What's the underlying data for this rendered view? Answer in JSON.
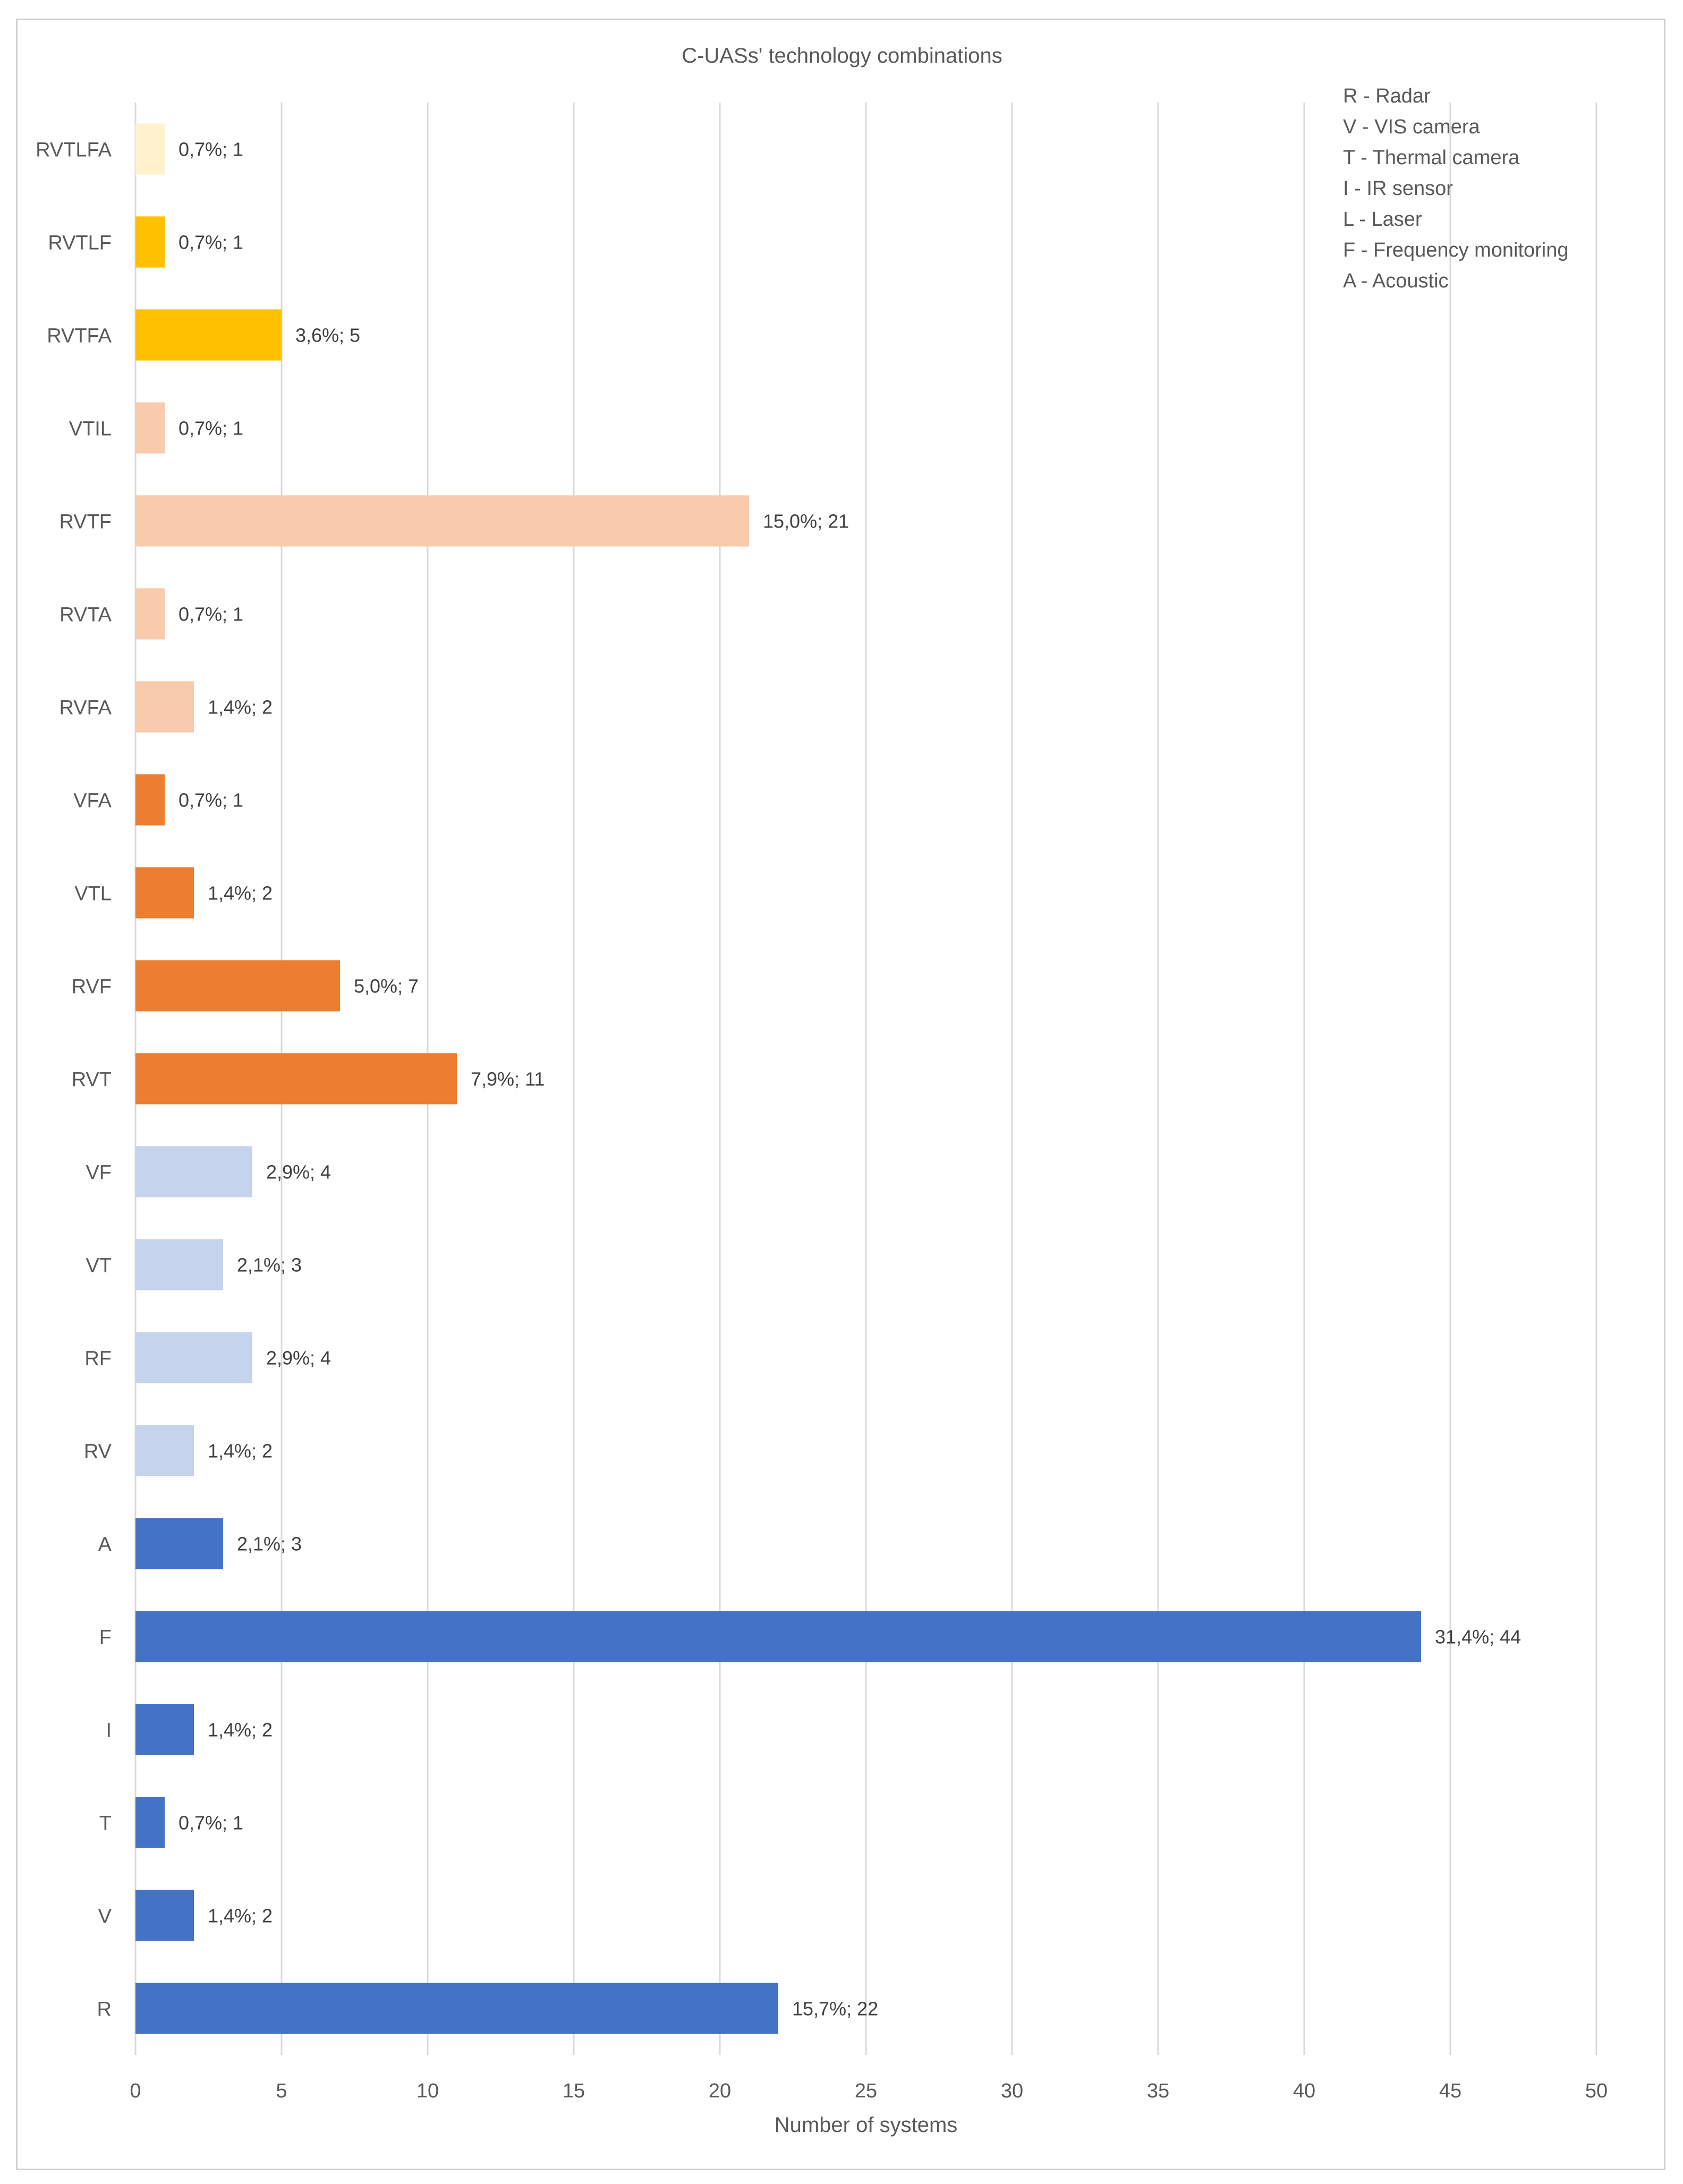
{
  "chart_data": {
    "type": "bar",
    "orientation": "horizontal",
    "title": "C-UASs' technology combinations",
    "xlabel": "Number of systems",
    "ylabel": "",
    "xlim": [
      0,
      50
    ],
    "xticks": [
      0,
      5,
      10,
      15,
      20,
      25,
      30,
      35,
      40,
      45,
      50
    ],
    "grid": "vertical",
    "legend_position": "top-right",
    "legend": [
      "R - Radar",
      "V - VIS camera",
      "T - Thermal camera",
      "I - IR sensor",
      "L - Laser",
      "F - Frequency monitoring",
      "A - Acoustic"
    ],
    "bars": [
      {
        "category": "RVTLFA",
        "value": 1,
        "label": "0,7%; 1",
        "color": "#FFF2CC"
      },
      {
        "category": "RVTLF",
        "value": 1,
        "label": "0,7%; 1",
        "color": "#FFC000"
      },
      {
        "category": "RVTFA",
        "value": 5,
        "label": "3,6%; 5",
        "color": "#FFC000"
      },
      {
        "category": "VTIL",
        "value": 1,
        "label": "0,7%; 1",
        "color": "#F8CBAD"
      },
      {
        "category": "RVTF",
        "value": 21,
        "label": "15,0%; 21",
        "color": "#F8CBAD"
      },
      {
        "category": "RVTA",
        "value": 1,
        "label": "0,7%; 1",
        "color": "#F8CBAD"
      },
      {
        "category": "RVFA",
        "value": 2,
        "label": "1,4%; 2",
        "color": "#F8CBAD"
      },
      {
        "category": "VFA",
        "value": 1,
        "label": "0,7%; 1",
        "color": "#ED7D31"
      },
      {
        "category": "VTL",
        "value": 2,
        "label": "1,4%; 2",
        "color": "#ED7D31"
      },
      {
        "category": "RVF",
        "value": 7,
        "label": "5,0%; 7",
        "color": "#ED7D31"
      },
      {
        "category": "RVT",
        "value": 11,
        "label": "7,9%; 11",
        "color": "#ED7D31"
      },
      {
        "category": "VF",
        "value": 4,
        "label": "2,9%; 4",
        "color": "#C5D3EC"
      },
      {
        "category": "VT",
        "value": 3,
        "label": "2,1%; 3",
        "color": "#C5D3EC"
      },
      {
        "category": "RF",
        "value": 4,
        "label": "2,9%; 4",
        "color": "#C5D3EC"
      },
      {
        "category": "RV",
        "value": 2,
        "label": "1,4%; 2",
        "color": "#C5D3EC"
      },
      {
        "category": "A",
        "value": 3,
        "label": "2,1%; 3",
        "color": "#4472C4"
      },
      {
        "category": "F",
        "value": 44,
        "label": "31,4%; 44",
        "color": "#4472C4"
      },
      {
        "category": "I",
        "value": 2,
        "label": "1,4%; 2",
        "color": "#4472C4"
      },
      {
        "category": "T",
        "value": 1,
        "label": "0,7%; 1",
        "color": "#4472C4"
      },
      {
        "category": "V",
        "value": 2,
        "label": "1,4%; 2",
        "color": "#4472C4"
      },
      {
        "category": "R",
        "value": 22,
        "label": "15,7%; 22",
        "color": "#4472C4"
      }
    ]
  }
}
